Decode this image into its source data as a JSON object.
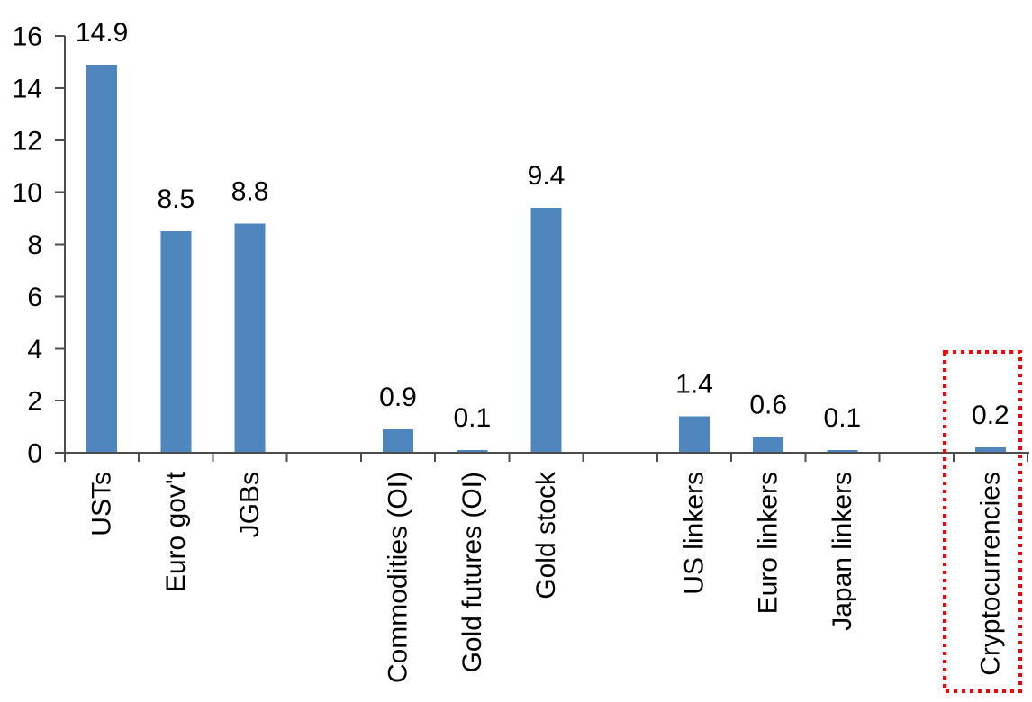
{
  "chart_data": {
    "type": "bar",
    "title": "",
    "xlabel": "",
    "ylabel": "",
    "categories": [
      "USTs",
      "Euro gov't",
      "JGBs",
      "",
      "Commodities (OI)",
      "Gold futures (OI)",
      "Gold stock",
      "",
      "US linkers",
      "Euro linkers",
      "Japan linkers",
      "",
      "Cryptocurrencies"
    ],
    "values": [
      14.9,
      8.5,
      8.8,
      null,
      0.9,
      0.1,
      9.4,
      null,
      1.4,
      0.6,
      0.1,
      null,
      0.2
    ],
    "data_labels": [
      "14.9",
      "8.5",
      "8.8",
      null,
      "0.9",
      "0.1",
      "9.4",
      null,
      "1.4",
      "0.6",
      "0.1",
      null,
      "0.2"
    ],
    "ylim": [
      0,
      16
    ],
    "ytick_step": 2,
    "ytick_labels": [
      "0",
      "2",
      "4",
      "6",
      "8",
      "10",
      "12",
      "14",
      "16"
    ],
    "grid": false,
    "legend": "none",
    "category_label_rotation_deg": 90,
    "colors": {
      "bar": "#4E86BD",
      "axis": "#4D4D4D",
      "text": "#000000",
      "highlight_box": "#FF0000"
    },
    "highlight": {
      "category": "Cryptocurrencies",
      "style": "red-dotted-rectangle"
    }
  }
}
